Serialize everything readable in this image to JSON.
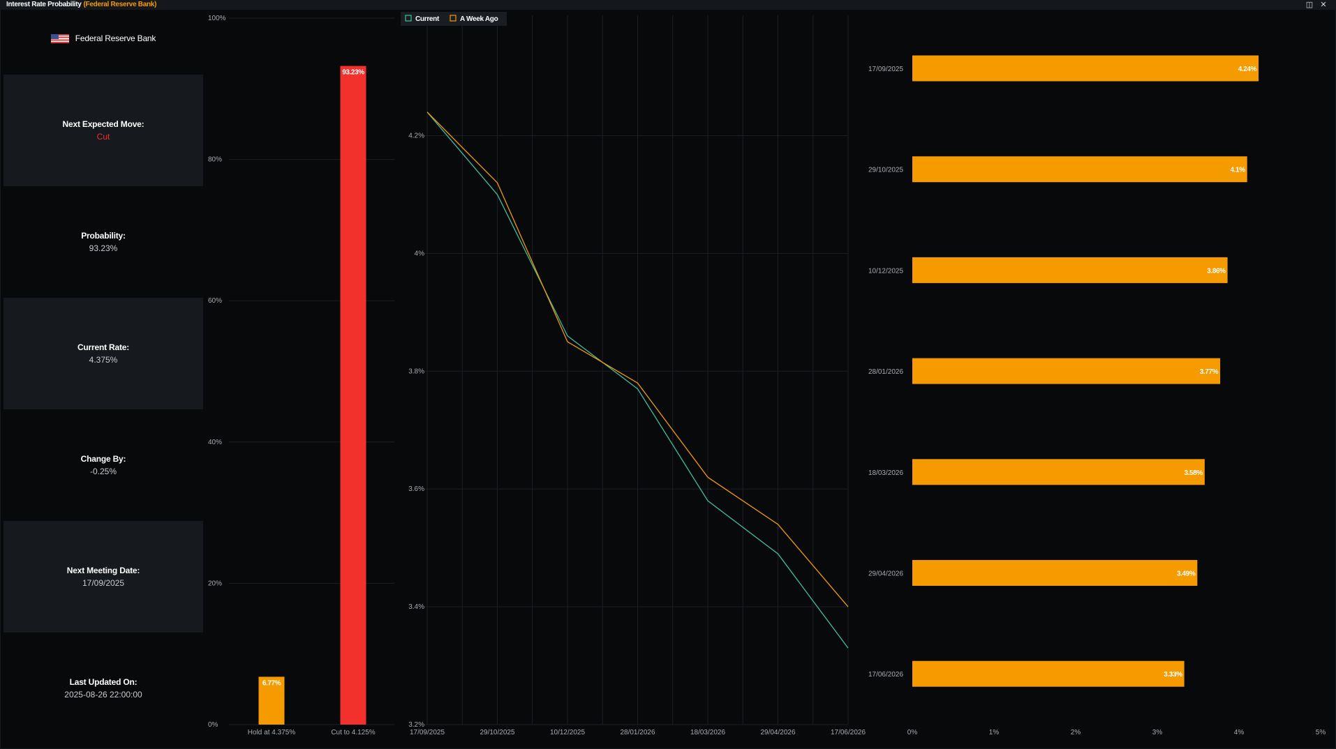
{
  "window": {
    "title": "Interest Rate Probability",
    "subtitle": "(Federal Reserve Bank)",
    "colors": {
      "accent": "#f59b00",
      "cut": "#f2312c",
      "current_line": "#3fbf9f",
      "week_ago_line": "#f59b00"
    }
  },
  "info": {
    "bank_name": "Federal Reserve Bank",
    "cards": [
      {
        "label": "Next Expected Move:",
        "value": "Cut"
      },
      {
        "label": "Probability:",
        "value": "93.23%"
      },
      {
        "label": "Current Rate:",
        "value": "4.375%"
      },
      {
        "label": "Change By:",
        "value": "-0.25%"
      },
      {
        "label": "Next Meeting Date:",
        "value": "17/09/2025"
      },
      {
        "label": "Last Updated On:",
        "value": "2025-08-26 22:00:00"
      }
    ]
  },
  "chart_data": [
    {
      "type": "bar",
      "categories": [
        "Hold at 4.375%",
        "Cut to 4.125%"
      ],
      "values": [
        6.77,
        93.23
      ],
      "data_labels": [
        "6.77%",
        "93.23%"
      ],
      "colors": [
        "#f59b00",
        "#f2312c"
      ],
      "ylim": [
        0,
        100
      ],
      "yticks": [
        "0%",
        "20%",
        "40%",
        "60%",
        "80%",
        "100%"
      ],
      "grid": true
    },
    {
      "type": "line",
      "x": [
        "17/09/2025",
        "29/10/2025",
        "10/12/2025",
        "28/01/2026",
        "18/03/2026",
        "29/04/2026",
        "17/06/2026"
      ],
      "series": [
        {
          "name": "Current",
          "values": [
            4.24,
            4.1,
            3.86,
            3.77,
            3.58,
            3.49,
            3.33
          ]
        },
        {
          "name": "A Week Ago",
          "values": [
            4.24,
            4.12,
            3.85,
            3.78,
            3.62,
            3.54,
            3.4
          ]
        }
      ],
      "ylim": [
        3.2,
        4.3
      ],
      "yticks": [
        "3.2%",
        "3.4%",
        "3.6%",
        "3.8%",
        "4%",
        "4.2%"
      ],
      "legend": "top-left",
      "grid": true
    },
    {
      "type": "bar",
      "orientation": "horizontal",
      "categories": [
        "17/09/2025",
        "29/10/2025",
        "10/12/2025",
        "28/01/2026",
        "18/03/2026",
        "29/04/2026",
        "17/06/2026"
      ],
      "values": [
        4.24,
        4.1,
        3.86,
        3.77,
        3.58,
        3.49,
        3.33
      ],
      "data_labels": [
        "4.24%",
        "4.1%",
        "3.86%",
        "3.77%",
        "3.58%",
        "3.49%",
        "3.33%"
      ],
      "xlim": [
        0,
        5
      ],
      "xticks": [
        "0%",
        "1%",
        "2%",
        "3%",
        "4%",
        "5%"
      ],
      "color": "#f59b00"
    }
  ]
}
